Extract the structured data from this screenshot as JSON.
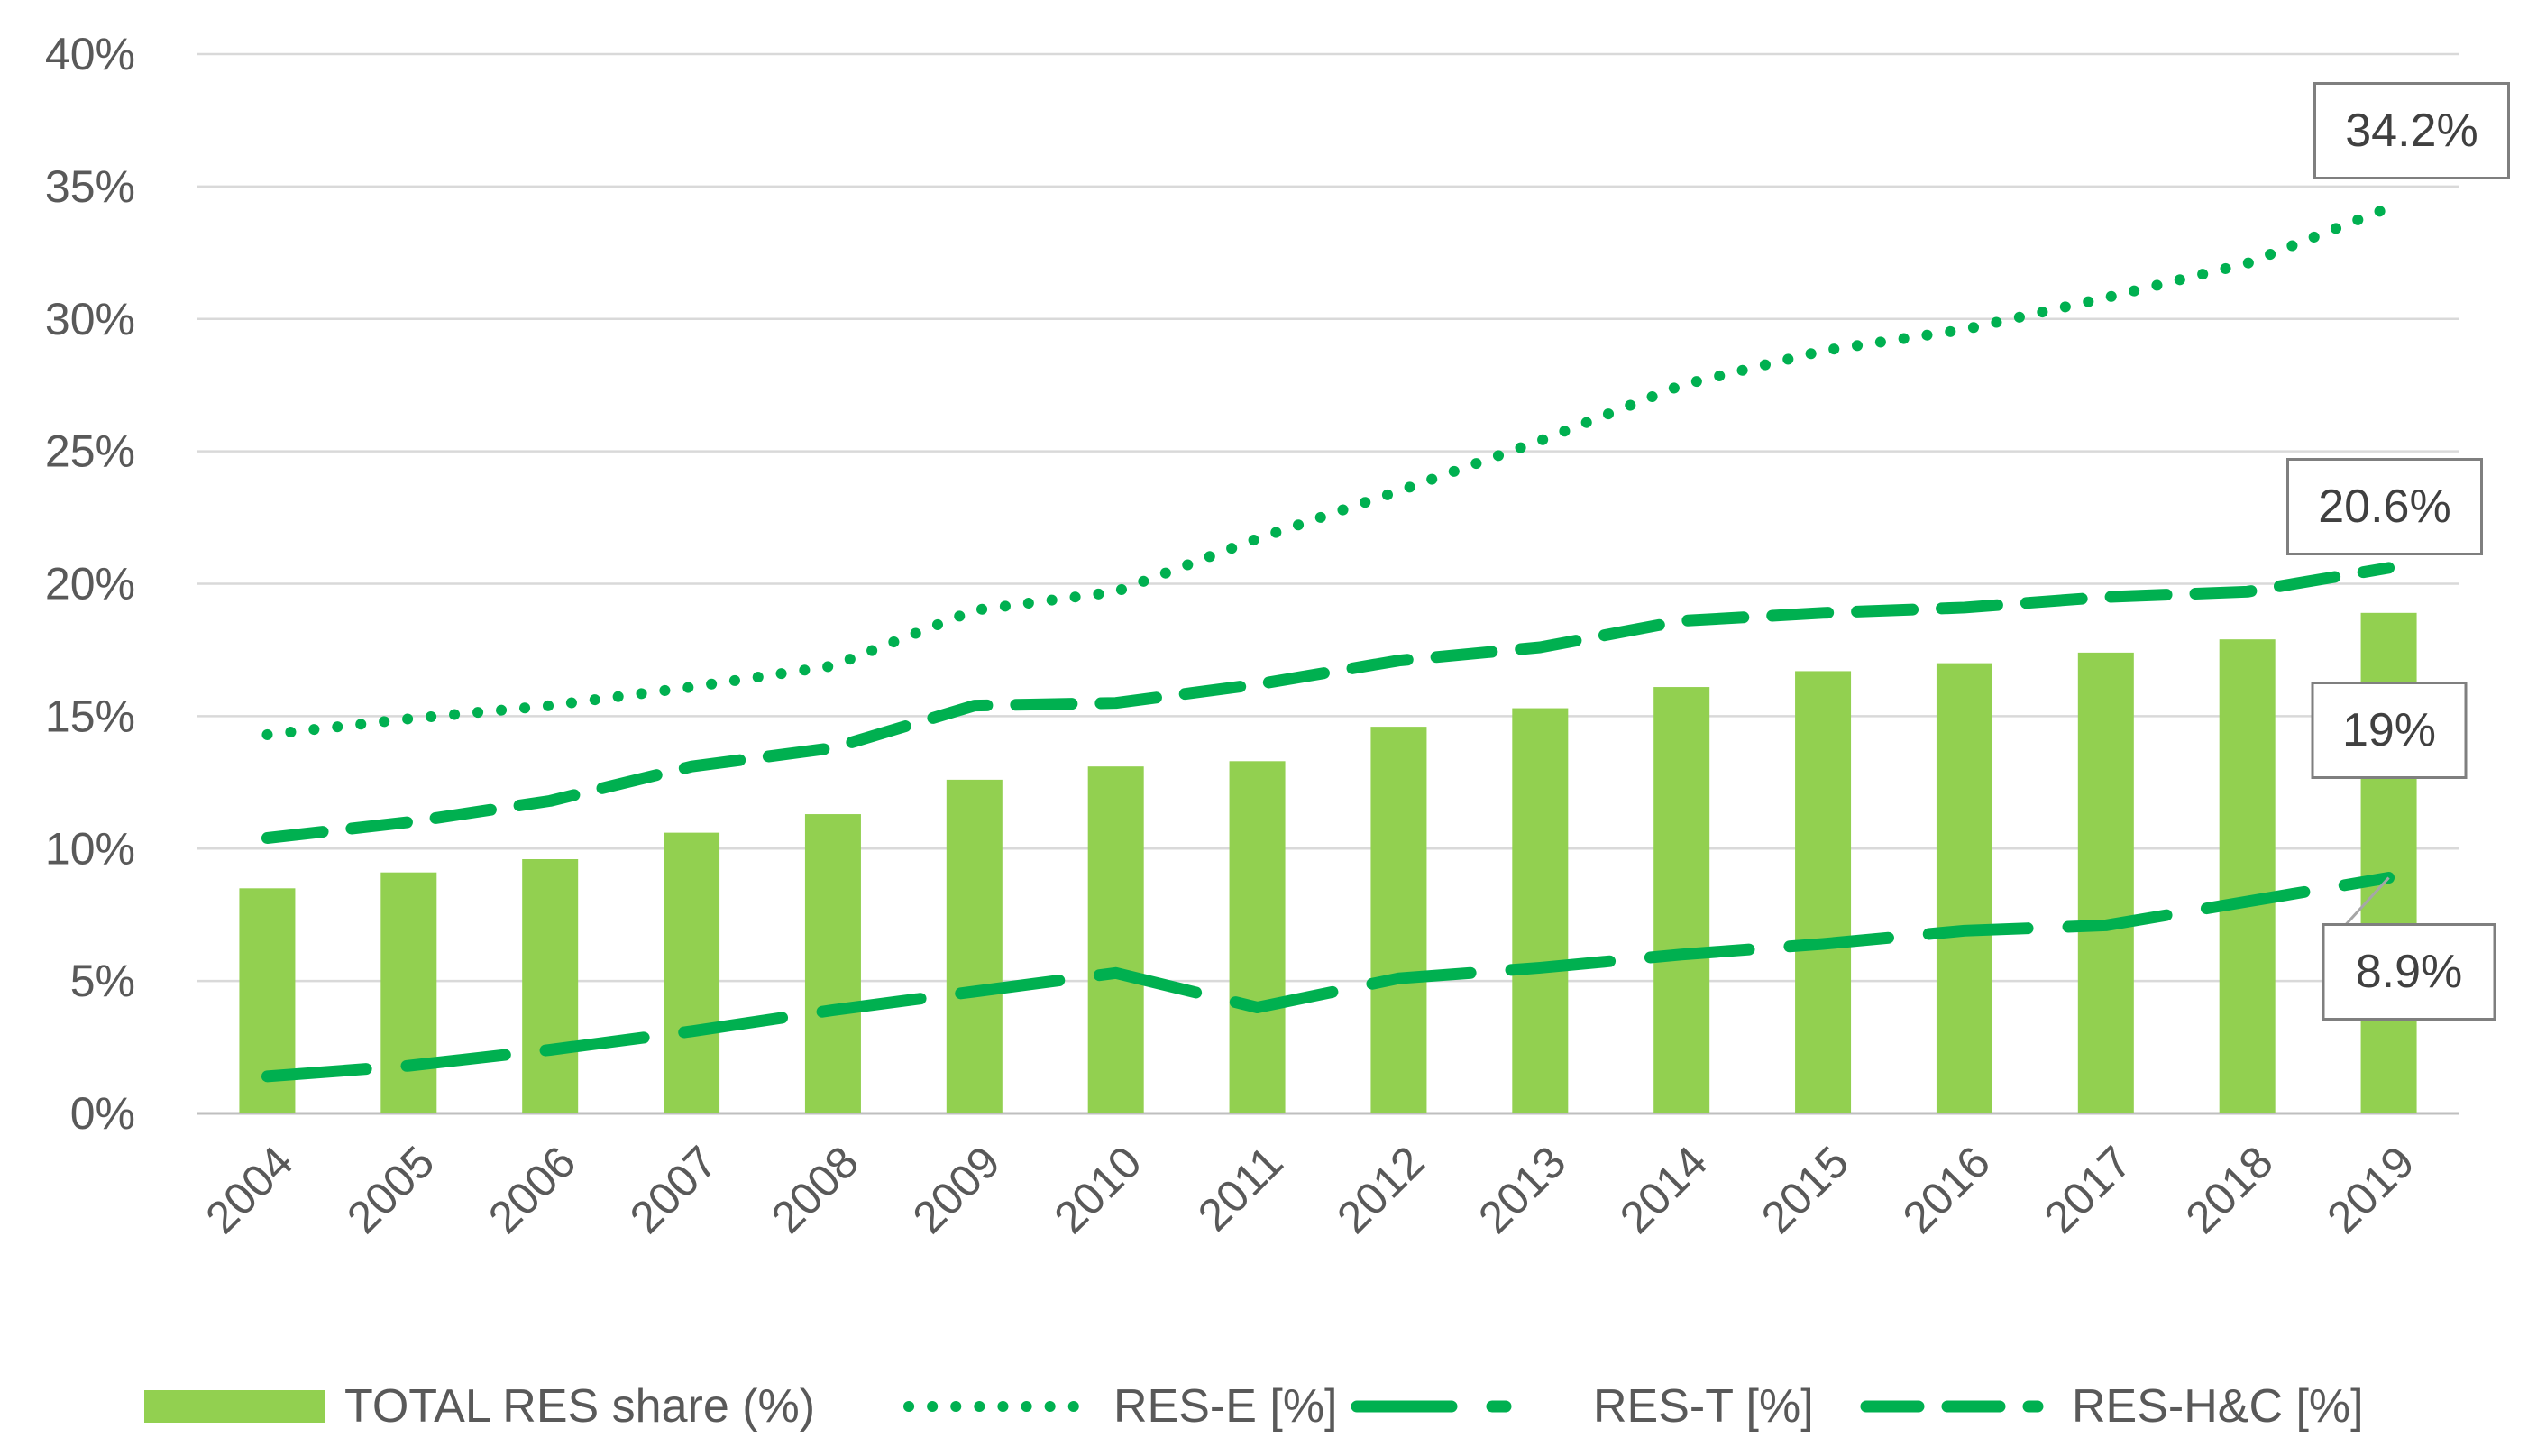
{
  "chart_data": {
    "type": "bar",
    "title": "",
    "xlabel": "",
    "ylabel": "",
    "ylim": [
      0,
      40
    ],
    "y_ticks": [
      0,
      5,
      10,
      15,
      20,
      25,
      30,
      35,
      40
    ],
    "y_tick_labels": [
      "0%",
      "5%",
      "10%",
      "15%",
      "20%",
      "25%",
      "30%",
      "35%",
      "40%"
    ],
    "grid": true,
    "legend_position": "bottom",
    "categories": [
      "2004",
      "2005",
      "2006",
      "2007",
      "2008",
      "2009",
      "2010",
      "2011",
      "2012",
      "2013",
      "2014",
      "2015",
      "2016",
      "2017",
      "2018",
      "2019"
    ],
    "series": [
      {
        "name": "TOTAL RES share (%)",
        "type": "bar",
        "color": "#92d050",
        "values": [
          8.5,
          9.1,
          9.6,
          10.6,
          11.3,
          12.6,
          13.1,
          13.3,
          14.6,
          15.3,
          16.1,
          16.7,
          17.0,
          17.4,
          17.9,
          18.9
        ]
      },
      {
        "name": "RES-E [%]",
        "type": "line",
        "style": "dotted",
        "color": "#00b050",
        "values": [
          14.3,
          14.9,
          15.4,
          16.1,
          16.9,
          19.0,
          19.7,
          21.7,
          23.5,
          25.4,
          27.5,
          28.8,
          29.6,
          30.8,
          32.1,
          34.2
        ]
      },
      {
        "name": "RES-T [%]",
        "type": "line",
        "style": "long-dash",
        "color": "#00b050",
        "values": [
          1.4,
          1.8,
          2.4,
          3.1,
          3.9,
          4.6,
          5.3,
          4.0,
          5.1,
          5.5,
          6.0,
          6.4,
          6.9,
          7.1,
          8.0,
          8.9
        ]
      },
      {
        "name": "RES-H&C [%]",
        "type": "line",
        "style": "dash",
        "color": "#00b050",
        "values": [
          10.4,
          11.0,
          11.8,
          13.1,
          13.8,
          15.4,
          15.5,
          16.2,
          17.1,
          17.6,
          18.6,
          18.9,
          19.1,
          19.5,
          19.7,
          20.6
        ]
      }
    ],
    "data_labels": [
      {
        "series": "RES-E [%]",
        "text": "34.2%"
      },
      {
        "series": "RES-H&C [%]",
        "text": "20.6%"
      },
      {
        "series": "TOTAL RES share (%)",
        "text": "19%"
      },
      {
        "series": "RES-T [%]",
        "text": "8.9%"
      }
    ]
  },
  "colors": {
    "bar": "#92d050",
    "line": "#00b050",
    "grid": "#d9d9d9",
    "text": "#595959",
    "label_border": "#7f7f7f",
    "label_text": "#404040"
  }
}
